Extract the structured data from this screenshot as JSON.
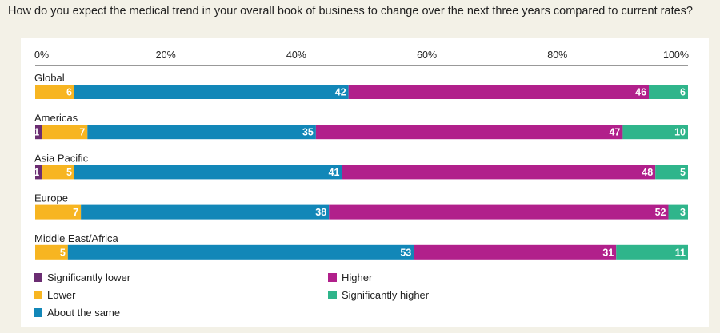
{
  "title": "How do you expect the medical trend in your overall book of business to change over the next three years compared to current rates?",
  "colors": {
    "significantly_lower": "#6b2d72",
    "lower": "#f7b521",
    "about_the_same": "#1287b8",
    "higher": "#b1208b",
    "significantly_higher": "#2fb58b",
    "axis": "#333333",
    "text": "#222222",
    "bar_label": "#ffffff"
  },
  "chart_data": {
    "type": "bar",
    "orientation": "horizontal",
    "stacked": true,
    "xlim": [
      0,
      100
    ],
    "x_ticks": [
      "0%",
      "20%",
      "40%",
      "60%",
      "80%",
      "100%"
    ],
    "categories": [
      "Global",
      "Americas",
      "Asia Pacific",
      "Europe",
      "Middle East/Africa"
    ],
    "series": [
      {
        "key": "significantly_lower",
        "name": "Significantly lower",
        "values": [
          0,
          1,
          1,
          0,
          0
        ]
      },
      {
        "key": "lower",
        "name": "Lower",
        "values": [
          6,
          7,
          5,
          7,
          5
        ]
      },
      {
        "key": "about_the_same",
        "name": "About the same",
        "values": [
          42,
          35,
          41,
          38,
          53
        ]
      },
      {
        "key": "higher",
        "name": "Higher",
        "values": [
          46,
          47,
          48,
          52,
          31
        ]
      },
      {
        "key": "significantly_higher",
        "name": "Significantly higher",
        "values": [
          6,
          10,
          5,
          3,
          11
        ]
      }
    ]
  },
  "legend": [
    {
      "key": "significantly_lower",
      "label": "Significantly lower"
    },
    {
      "key": "lower",
      "label": "Lower"
    },
    {
      "key": "about_the_same",
      "label": "About the same"
    },
    {
      "key": "higher",
      "label": "Higher"
    },
    {
      "key": "significantly_higher",
      "label": "Significantly higher"
    }
  ]
}
